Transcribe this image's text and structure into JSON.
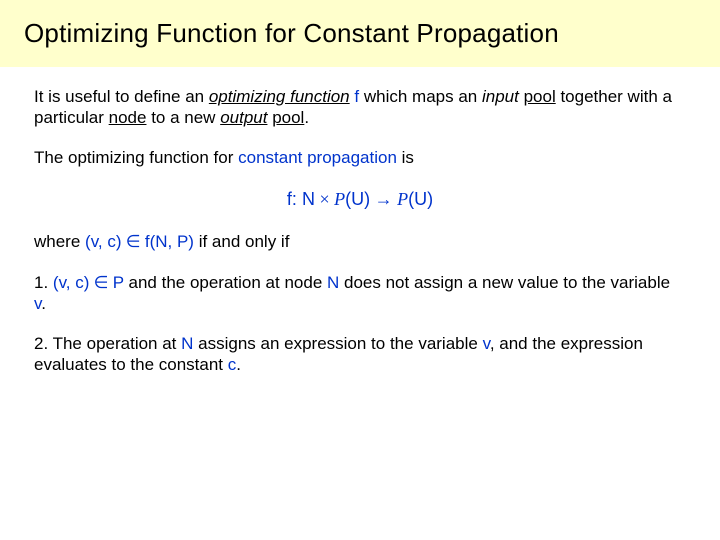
{
  "colors": {
    "title_bg": "#ffffcc",
    "accent": "#0033cc",
    "text": "#000000"
  },
  "title": "Optimizing Function for Constant Propagation",
  "p1_a": "It is useful to define an ",
  "p1_of": "optimizing function",
  "p1_sp1": " ",
  "p1_f": "f",
  "p1_b": " which maps an ",
  "p1_input": "input",
  "p1_sp2": " ",
  "p1_pool1": "pool",
  "p1_c": " together with a particular ",
  "p1_node": "node",
  "p1_d": " to a new ",
  "p1_output": "output",
  "p1_sp3": " ",
  "p1_pool2": "pool",
  "p1_e": ".",
  "p2_a": "The optimizing function for ",
  "p2_cp": "constant propagation",
  "p2_b": " is",
  "fm_f": "f",
  "fm_colon": ": ",
  "fm_N": "N",
  "fm_times": " × ",
  "fm_P1": "P",
  "fm_U1": "(U)",
  "fm_arrow": " → ",
  "fm_P2": "P",
  "fm_U2": "(U)",
  "p3_a": "where ",
  "p3_vc": "(v, c)",
  "p3_in": " ∈ ",
  "p3_fnp": "f(N, P)",
  "p3_b": "  if and only if",
  "c1_a": "1. ",
  "c1_vc": "(v, c)",
  "c1_in": " ∈ ",
  "c1_P": "P",
  "c1_b": " and the operation at node ",
  "c1_N": "N",
  "c1_c": " does not assign a new value to the variable ",
  "c1_v": "v",
  "c1_d": ".",
  "c2_a": "2. The operation at ",
  "c2_N": "N",
  "c2_b": " assigns an expression to the variable ",
  "c2_v": "v",
  "c2_c": ", and the expression evaluates to the constant ",
  "c2_cc": "c",
  "c2_d": "."
}
